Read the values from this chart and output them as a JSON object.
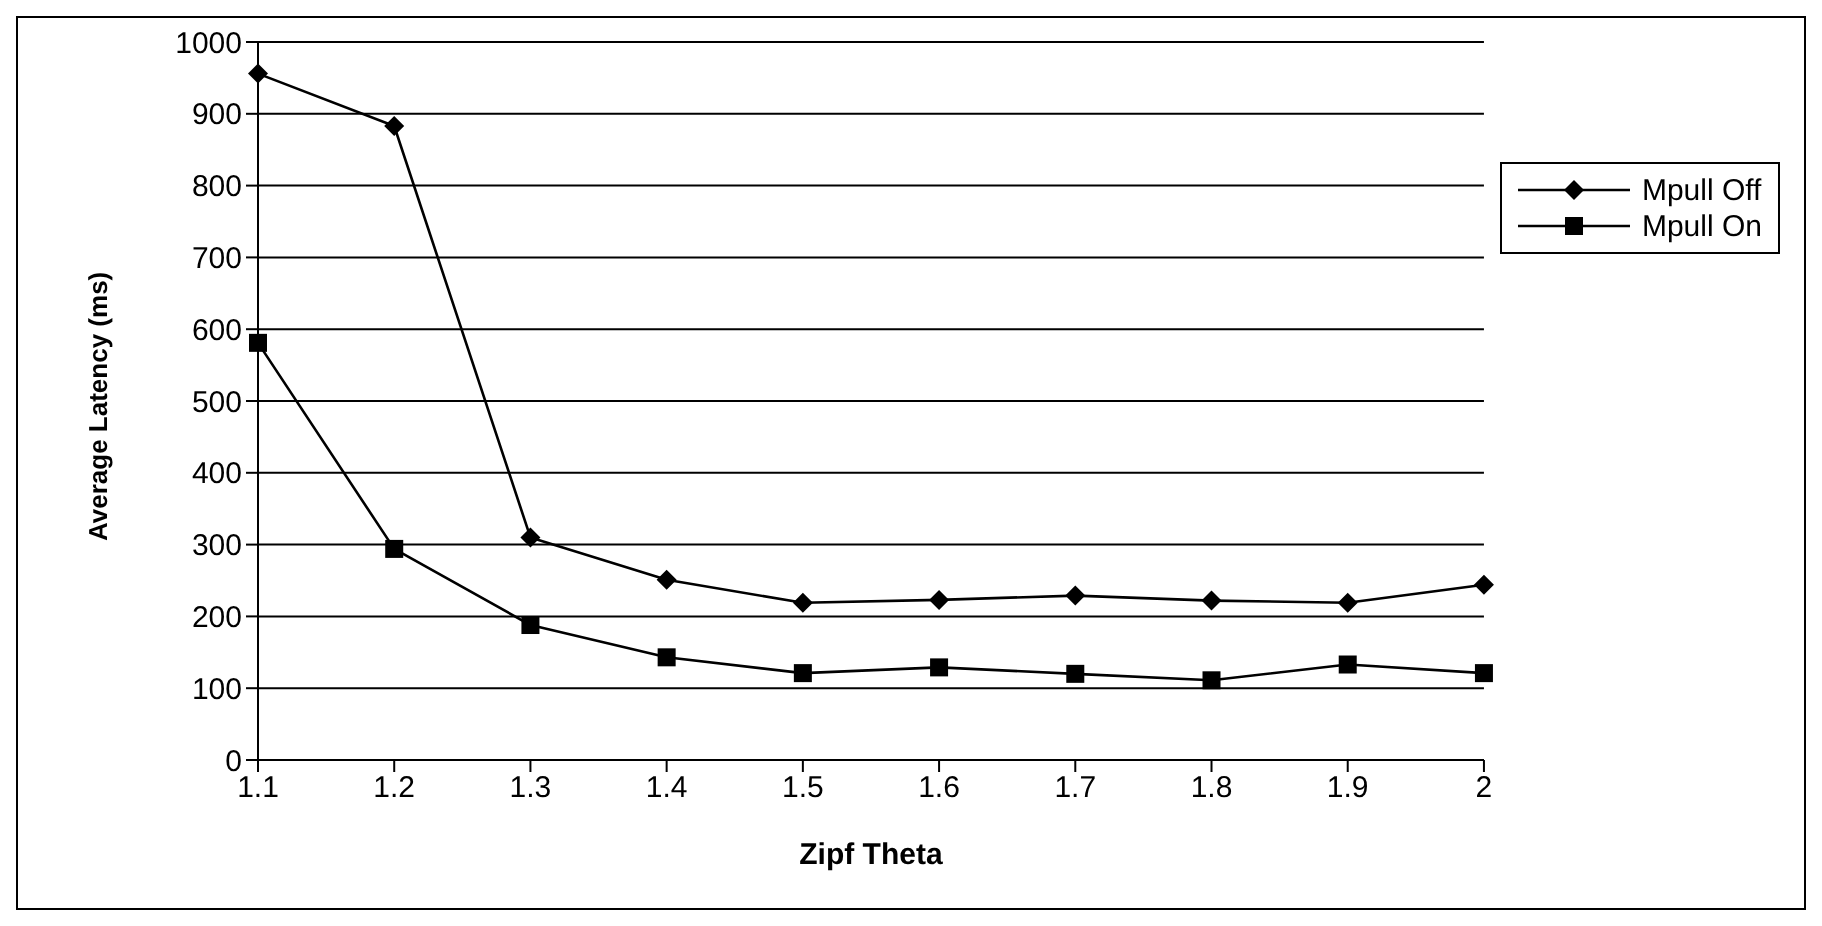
{
  "chart_data": {
    "type": "line",
    "xlabel": "Zipf Theta",
    "ylabel": "Average Latency (ms)",
    "categories": [
      "1.1",
      "1.2",
      "1.3",
      "1.4",
      "1.5",
      "1.6",
      "1.7",
      "1.8",
      "1.9",
      "2"
    ],
    "series": [
      {
        "name": "Mpull Off",
        "color": "#000000",
        "marker": "diamond",
        "values": [
          956,
          883,
          310,
          251,
          219,
          223,
          229,
          222,
          219,
          244
        ]
      },
      {
        "name": "Mpull On",
        "color": "#000000",
        "marker": "square",
        "values": [
          581,
          294,
          188,
          143,
          121,
          129,
          120,
          111,
          133,
          121
        ]
      }
    ],
    "ylim": [
      0,
      1000
    ],
    "yticks": [
      0,
      100,
      200,
      300,
      400,
      500,
      600,
      700,
      800,
      900,
      1000
    ],
    "grid": "y",
    "legend": "top right",
    "line_style": "solid"
  }
}
